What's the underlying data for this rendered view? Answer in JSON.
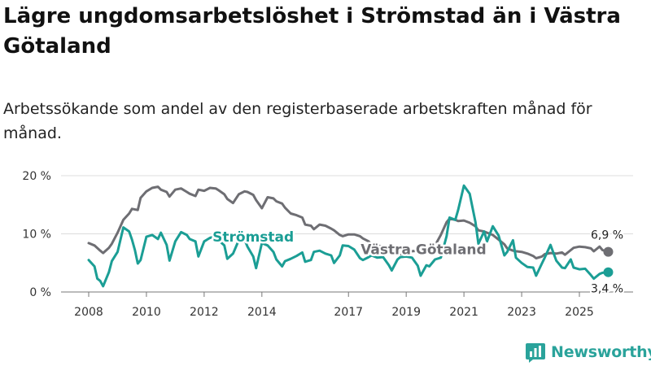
{
  "chart_data": {
    "type": "line",
    "title": "Lägre ungdomsarbetslöshet i Strömstad än i Västra Götaland",
    "subtitle": "Arbetssökande som andel av den registerbaserade arbetskraften månad för månad.",
    "xlabel": "",
    "ylabel": "",
    "ylim": [
      0,
      20
    ],
    "yticks": [
      {
        "value": 0,
        "label": "0 %"
      },
      {
        "value": 10,
        "label": "10 %"
      },
      {
        "value": 20,
        "label": "20 %"
      }
    ],
    "xlim": [
      2007.6,
      2026.1
    ],
    "xticks": [
      {
        "value": 2008,
        "label": "2008"
      },
      {
        "value": 2010,
        "label": "2010"
      },
      {
        "value": 2012,
        "label": "2012"
      },
      {
        "value": 2014,
        "label": "2014"
      },
      {
        "value": 2017,
        "label": "2017"
      },
      {
        "value": 2019,
        "label": "2019"
      },
      {
        "value": 2021,
        "label": "2021"
      },
      {
        "value": 2023,
        "label": "2023"
      },
      {
        "value": 2025,
        "label": "2025"
      }
    ],
    "grid": true,
    "series": [
      {
        "name": "Västra Götaland",
        "color": "#6e6e73",
        "end_label": "6,9 %",
        "points": [
          [
            2008.0,
            8.4
          ],
          [
            2008.2,
            8.0
          ],
          [
            2008.4,
            7.1
          ],
          [
            2008.5,
            6.7
          ],
          [
            2008.7,
            7.6
          ],
          [
            2008.8,
            8.3
          ],
          [
            2009.0,
            10.2
          ],
          [
            2009.2,
            12.4
          ],
          [
            2009.4,
            13.5
          ],
          [
            2009.5,
            14.3
          ],
          [
            2009.7,
            14.1
          ],
          [
            2009.8,
            16.2
          ],
          [
            2010.0,
            17.3
          ],
          [
            2010.2,
            17.9
          ],
          [
            2010.4,
            18.1
          ],
          [
            2010.5,
            17.6
          ],
          [
            2010.7,
            17.2
          ],
          [
            2010.8,
            16.4
          ],
          [
            2011.0,
            17.6
          ],
          [
            2011.2,
            17.8
          ],
          [
            2011.4,
            17.2
          ],
          [
            2011.5,
            16.9
          ],
          [
            2011.7,
            16.5
          ],
          [
            2011.8,
            17.6
          ],
          [
            2012.0,
            17.4
          ],
          [
            2012.2,
            17.9
          ],
          [
            2012.4,
            17.8
          ],
          [
            2012.5,
            17.5
          ],
          [
            2012.7,
            16.8
          ],
          [
            2012.8,
            16.0
          ],
          [
            2013.0,
            15.3
          ],
          [
            2013.2,
            16.8
          ],
          [
            2013.4,
            17.3
          ],
          [
            2013.5,
            17.2
          ],
          [
            2013.7,
            16.7
          ],
          [
            2013.8,
            15.8
          ],
          [
            2014.0,
            14.4
          ],
          [
            2014.2,
            16.3
          ],
          [
            2014.4,
            16.1
          ],
          [
            2014.5,
            15.6
          ],
          [
            2014.7,
            15.2
          ],
          [
            2014.8,
            14.5
          ],
          [
            2015.0,
            13.5
          ],
          [
            2015.2,
            13.2
          ],
          [
            2015.4,
            12.8
          ],
          [
            2015.5,
            11.6
          ],
          [
            2015.7,
            11.4
          ],
          [
            2015.8,
            10.8
          ],
          [
            2016.0,
            11.6
          ],
          [
            2016.2,
            11.4
          ],
          [
            2016.4,
            10.9
          ],
          [
            2016.5,
            10.6
          ],
          [
            2016.7,
            9.8
          ],
          [
            2016.8,
            9.6
          ],
          [
            2017.0,
            9.9
          ],
          [
            2017.2,
            9.9
          ],
          [
            2017.4,
            9.6
          ],
          [
            2017.5,
            9.2
          ],
          [
            2017.7,
            8.7
          ],
          [
            2017.8,
            8.1
          ],
          [
            2018.0,
            8.0
          ],
          [
            2018.2,
            7.8
          ],
          [
            2018.4,
            7.6
          ],
          [
            2018.5,
            7.3
          ],
          [
            2018.7,
            6.9
          ],
          [
            2018.8,
            6.5
          ],
          [
            2019.0,
            6.9
          ],
          [
            2019.2,
            7.0
          ],
          [
            2019.4,
            7.1
          ],
          [
            2019.5,
            6.9
          ],
          [
            2019.7,
            6.6
          ],
          [
            2019.8,
            7.0
          ],
          [
            2020.0,
            8.0
          ],
          [
            2020.2,
            9.8
          ],
          [
            2020.4,
            12.0
          ],
          [
            2020.5,
            12.6
          ],
          [
            2020.7,
            12.4
          ],
          [
            2020.8,
            12.2
          ],
          [
            2021.0,
            12.3
          ],
          [
            2021.2,
            11.9
          ],
          [
            2021.4,
            11.3
          ],
          [
            2021.5,
            10.6
          ],
          [
            2021.7,
            10.4
          ],
          [
            2021.8,
            10.2
          ],
          [
            2022.0,
            9.8
          ],
          [
            2022.2,
            9.0
          ],
          [
            2022.4,
            8.2
          ],
          [
            2022.5,
            7.5
          ],
          [
            2022.7,
            7.1
          ],
          [
            2022.8,
            7.0
          ],
          [
            2023.0,
            6.9
          ],
          [
            2023.2,
            6.6
          ],
          [
            2023.4,
            6.2
          ],
          [
            2023.5,
            5.8
          ],
          [
            2023.7,
            6.1
          ],
          [
            2023.8,
            6.5
          ],
          [
            2024.0,
            6.7
          ],
          [
            2024.2,
            6.6
          ],
          [
            2024.4,
            6.8
          ],
          [
            2024.5,
            6.4
          ],
          [
            2024.7,
            7.2
          ],
          [
            2024.8,
            7.6
          ],
          [
            2025.0,
            7.8
          ],
          [
            2025.2,
            7.7
          ],
          [
            2025.4,
            7.5
          ],
          [
            2025.5,
            7.0
          ],
          [
            2025.7,
            7.8
          ],
          [
            2025.8,
            7.2
          ],
          [
            2026.0,
            6.9
          ]
        ]
      },
      {
        "name": "Strömstad",
        "color": "#1b9e95",
        "end_label": "3,4 %",
        "points": [
          [
            2008.0,
            5.5
          ],
          [
            2008.2,
            4.4
          ],
          [
            2008.3,
            2.3
          ],
          [
            2008.4,
            1.9
          ],
          [
            2008.5,
            1.0
          ],
          [
            2008.7,
            3.4
          ],
          [
            2008.8,
            5.3
          ],
          [
            2009.0,
            6.9
          ],
          [
            2009.2,
            11.1
          ],
          [
            2009.4,
            10.4
          ],
          [
            2009.5,
            9.0
          ],
          [
            2009.6,
            7.2
          ],
          [
            2009.7,
            4.9
          ],
          [
            2009.8,
            5.5
          ],
          [
            2010.0,
            9.5
          ],
          [
            2010.2,
            9.8
          ],
          [
            2010.4,
            9.1
          ],
          [
            2010.5,
            10.2
          ],
          [
            2010.7,
            8.1
          ],
          [
            2010.8,
            5.4
          ],
          [
            2011.0,
            8.7
          ],
          [
            2011.2,
            10.3
          ],
          [
            2011.4,
            9.8
          ],
          [
            2011.5,
            9.1
          ],
          [
            2011.7,
            8.7
          ],
          [
            2011.8,
            6.1
          ],
          [
            2012.0,
            8.7
          ],
          [
            2012.2,
            9.3
          ],
          [
            2012.4,
            9.6
          ],
          [
            2012.5,
            8.9
          ],
          [
            2012.7,
            8.0
          ],
          [
            2012.8,
            5.7
          ],
          [
            2013.0,
            6.6
          ],
          [
            2013.2,
            8.9
          ],
          [
            2013.4,
            9.0
          ],
          [
            2013.5,
            7.8
          ],
          [
            2013.7,
            6.1
          ],
          [
            2013.8,
            4.1
          ],
          [
            2014.0,
            8.4
          ],
          [
            2014.2,
            8.0
          ],
          [
            2014.4,
            6.9
          ],
          [
            2014.5,
            5.6
          ],
          [
            2014.7,
            4.4
          ],
          [
            2014.8,
            5.3
          ],
          [
            2015.0,
            5.7
          ],
          [
            2015.2,
            6.2
          ],
          [
            2015.4,
            6.8
          ],
          [
            2015.5,
            5.2
          ],
          [
            2015.7,
            5.5
          ],
          [
            2015.8,
            6.9
          ],
          [
            2016.0,
            7.1
          ],
          [
            2016.2,
            6.6
          ],
          [
            2016.4,
            6.3
          ],
          [
            2016.5,
            5.0
          ],
          [
            2016.7,
            6.3
          ],
          [
            2016.8,
            8.0
          ],
          [
            2017.0,
            7.9
          ],
          [
            2017.2,
            7.3
          ],
          [
            2017.4,
            5.8
          ],
          [
            2017.5,
            5.5
          ],
          [
            2017.7,
            6.0
          ],
          [
            2017.8,
            6.3
          ],
          [
            2018.0,
            5.9
          ],
          [
            2018.2,
            6.0
          ],
          [
            2018.4,
            4.6
          ],
          [
            2018.5,
            3.7
          ],
          [
            2018.7,
            5.6
          ],
          [
            2018.8,
            6.0
          ],
          [
            2019.0,
            6.1
          ],
          [
            2019.2,
            5.9
          ],
          [
            2019.4,
            4.5
          ],
          [
            2019.5,
            2.8
          ],
          [
            2019.7,
            4.6
          ],
          [
            2019.8,
            4.4
          ],
          [
            2020.0,
            5.6
          ],
          [
            2020.2,
            5.9
          ],
          [
            2020.4,
            9.6
          ],
          [
            2020.5,
            12.8
          ],
          [
            2020.7,
            12.4
          ],
          [
            2020.8,
            14.1
          ],
          [
            2021.0,
            18.3
          ],
          [
            2021.2,
            16.9
          ],
          [
            2021.4,
            12.0
          ],
          [
            2021.5,
            8.3
          ],
          [
            2021.7,
            10.4
          ],
          [
            2021.8,
            8.7
          ],
          [
            2022.0,
            11.3
          ],
          [
            2022.2,
            9.7
          ],
          [
            2022.4,
            6.3
          ],
          [
            2022.5,
            6.9
          ],
          [
            2022.7,
            8.9
          ],
          [
            2022.8,
            5.9
          ],
          [
            2023.0,
            5.0
          ],
          [
            2023.2,
            4.3
          ],
          [
            2023.4,
            4.2
          ],
          [
            2023.5,
            2.8
          ],
          [
            2023.7,
            4.9
          ],
          [
            2023.8,
            5.9
          ],
          [
            2024.0,
            8.1
          ],
          [
            2024.2,
            5.4
          ],
          [
            2024.4,
            4.2
          ],
          [
            2024.5,
            4.1
          ],
          [
            2024.7,
            5.6
          ],
          [
            2024.8,
            4.2
          ],
          [
            2025.0,
            3.9
          ],
          [
            2025.2,
            4.0
          ],
          [
            2025.4,
            2.9
          ],
          [
            2025.5,
            2.3
          ],
          [
            2025.7,
            3.1
          ],
          [
            2025.8,
            3.3
          ],
          [
            2026.0,
            3.4
          ]
        ]
      }
    ]
  },
  "brand": {
    "name": "Newsworthy",
    "icon": "newsworthy-logo-icon"
  },
  "colors": {
    "stromstad": "#1b9e95",
    "vastra": "#6e6e73",
    "grid": "#dcdcdc",
    "brand": "#2aa39b"
  }
}
